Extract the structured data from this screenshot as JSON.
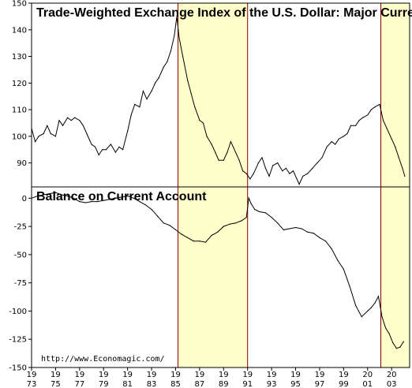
{
  "chart_data": [
    {
      "type": "line",
      "title": "Trade-Weighted Exchange Index of the U.S. Dollar: Major Currency",
      "xlabel": "",
      "ylabel": "",
      "xlim": [
        1973,
        2004.5
      ],
      "ylim": [
        81,
        150
      ],
      "yticks": [
        90,
        100,
        110,
        120,
        130,
        140,
        150
      ],
      "grid": false,
      "series": [
        {
          "x": [
            1973.0,
            1973.3,
            1973.6,
            1974.0,
            1974.3,
            1974.6,
            1975.0,
            1975.3,
            1975.6,
            1976.0,
            1976.3,
            1976.6,
            1977.0,
            1977.3,
            1977.6,
            1978.0,
            1978.3,
            1978.6,
            1978.9,
            1979.2,
            1979.6,
            1980.0,
            1980.3,
            1980.6,
            1981.0,
            1981.3,
            1981.6,
            1982.0,
            1982.3,
            1982.6,
            1983.0,
            1983.3,
            1983.6,
            1984.0,
            1984.3,
            1984.6,
            1984.9,
            1985.1,
            1985.3,
            1985.6,
            1986.0,
            1986.3,
            1986.6,
            1987.0,
            1987.3,
            1987.6,
            1988.0,
            1988.3,
            1988.6,
            1989.0,
            1989.3,
            1989.6,
            1990.0,
            1990.3,
            1990.6,
            1990.9,
            1991.2,
            1991.5,
            1991.9,
            1992.2,
            1992.5,
            1992.8,
            1993.1,
            1993.5,
            1993.9,
            1994.2,
            1994.5,
            1994.8,
            1995.1,
            1995.3,
            1995.6,
            1996.0,
            1996.4,
            1996.8,
            1997.2,
            1997.6,
            1998.0,
            1998.3,
            1998.6,
            1999.0,
            1999.3,
            1999.6,
            2000.0,
            2000.3,
            2000.6,
            2001.0,
            2001.3,
            2001.6,
            2002.0,
            2002.3,
            2002.6,
            2003.0,
            2003.3,
            2003.6,
            2003.9,
            2004.1
          ],
          "y": [
            103,
            98,
            100,
            101,
            104,
            101,
            100,
            106,
            104,
            107,
            106,
            107,
            106,
            104,
            101,
            97,
            96,
            93,
            95,
            95,
            97,
            94,
            96,
            95,
            102,
            108,
            112,
            111,
            117,
            114,
            117,
            120,
            122,
            126,
            128,
            132,
            138,
            145,
            137,
            130,
            121,
            116,
            111,
            106,
            105,
            100,
            97,
            94,
            91,
            91,
            94,
            98,
            94,
            91,
            87,
            86,
            84,
            86,
            90,
            92,
            88,
            85,
            89,
            90,
            87,
            88,
            86,
            87,
            84,
            82,
            85,
            86,
            88,
            90,
            92,
            96,
            98,
            97,
            99,
            100,
            101,
            104,
            104,
            106,
            107,
            108,
            110,
            111,
            112,
            106,
            103,
            99,
            96,
            92,
            88,
            85
          ]
        }
      ]
    },
    {
      "type": "line",
      "title": "Balance on Current Account",
      "xlabel": "",
      "ylabel": "",
      "xlim": [
        1973,
        2004.5
      ],
      "ylim": [
        -150,
        10
      ],
      "yticks": [
        0,
        -25,
        -50,
        -75,
        -100,
        -125,
        -150
      ],
      "xticks": [
        "19\n73",
        "19\n75",
        "19\n77",
        "19\n79",
        "19\n81",
        "19\n83",
        "19\n85",
        "19\n87",
        "19\n89",
        "19\n91",
        "19\n93",
        "19\n95",
        "19\n97",
        "19\n99",
        "20\n01",
        "20\n03"
      ],
      "grid": false,
      "annotations": [
        "http://www.Economagic.com/"
      ],
      "series": [
        {
          "x": [
            1973.0,
            1973.5,
            1974.0,
            1974.5,
            1975.0,
            1975.5,
            1976.0,
            1976.5,
            1977.0,
            1977.5,
            1978.0,
            1978.5,
            1979.0,
            1979.5,
            1980.0,
            1980.5,
            1981.0,
            1981.5,
            1982.0,
            1982.5,
            1983.0,
            1983.5,
            1984.0,
            1984.5,
            1985.0,
            1985.5,
            1986.0,
            1986.5,
            1987.0,
            1987.5,
            1988.0,
            1988.5,
            1989.0,
            1989.5,
            1990.0,
            1990.5,
            1990.9,
            1991.1,
            1991.3,
            1991.6,
            1992.0,
            1992.5,
            1993.0,
            1993.5,
            1994.0,
            1994.5,
            1995.0,
            1995.5,
            1996.0,
            1996.5,
            1997.0,
            1997.5,
            1998.0,
            1998.5,
            1999.0,
            1999.5,
            2000.0,
            2000.5,
            2001.0,
            2001.3,
            2001.6,
            2001.9,
            2002.2,
            2002.5,
            2002.8,
            2003.1,
            2003.4,
            2003.7,
            2004.0
          ],
          "y": [
            0,
            2,
            3,
            4,
            5,
            3,
            2,
            0,
            -3,
            -4,
            -3,
            -3,
            -2,
            -1,
            0,
            1,
            2,
            0,
            -3,
            -6,
            -10,
            -16,
            -22,
            -24,
            -28,
            -32,
            -35,
            -38,
            -38,
            -39,
            -33,
            -30,
            -25,
            -23,
            -22,
            -20,
            -17,
            0,
            -5,
            -10,
            -12,
            -13,
            -17,
            -22,
            -28,
            -27,
            -26,
            -27,
            -30,
            -31,
            -35,
            -38,
            -45,
            -55,
            -63,
            -78,
            -95,
            -105,
            -100,
            -97,
            -93,
            -87,
            -105,
            -115,
            -120,
            -128,
            -133,
            -132,
            -127
          ]
        }
      ],
      "marker_lines": [
        1985.2,
        1991.0,
        2002.1
      ],
      "shaded_periods": [
        [
          1985.2,
          1991.0
        ],
        [
          2002.1,
          2004.5
        ]
      ]
    }
  ],
  "colors": {
    "shade": "#ffffcc",
    "marker": "#8b0000",
    "line": "#000000",
    "frame": "#000000"
  }
}
